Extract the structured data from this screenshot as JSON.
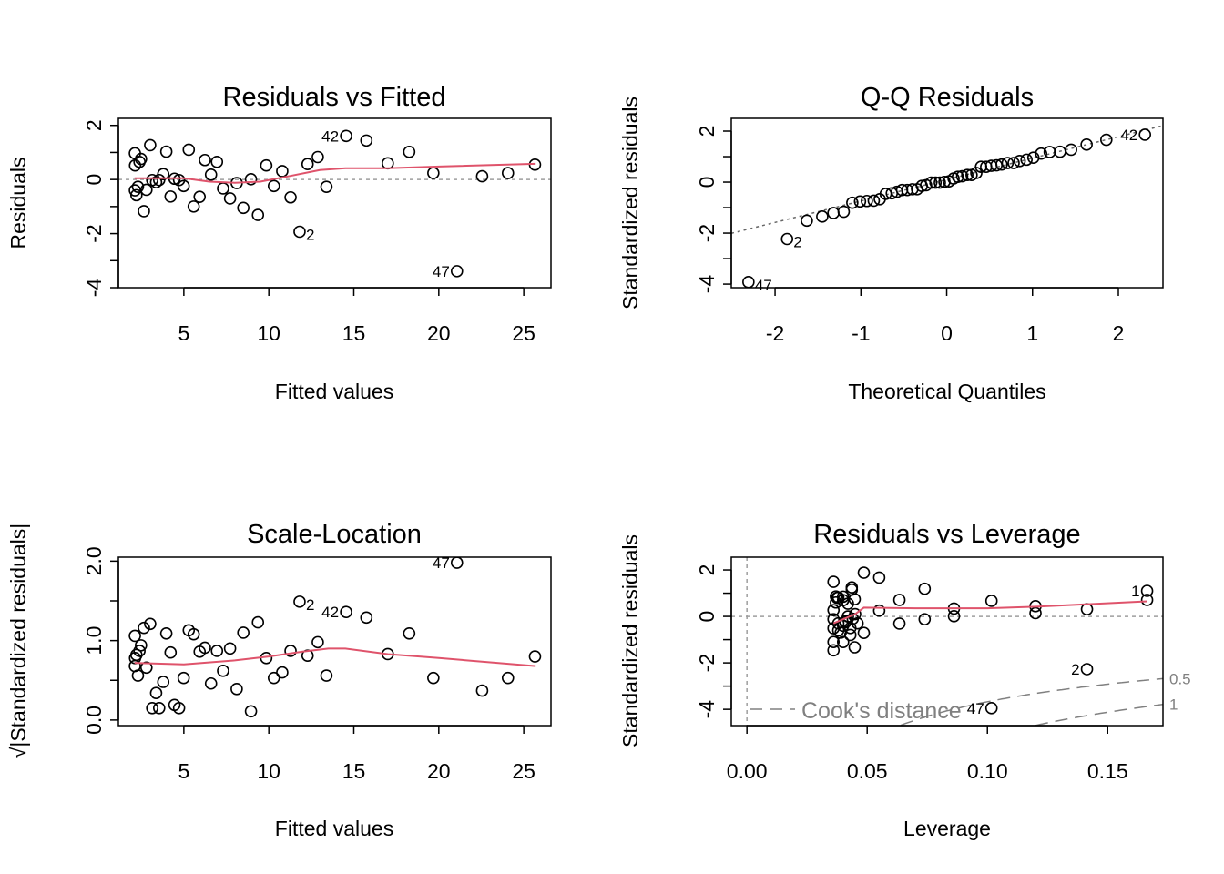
{
  "colors": {
    "points": "#000000",
    "smoother": "#DF536B",
    "reference": "#9E9E9E",
    "cooks": "#808080"
  },
  "chart_data": [
    {
      "type": "scatter",
      "title": "Residuals vs Fitted",
      "xlabel": "Fitted values",
      "ylabel": "Residuals",
      "xlim": [
        1.15,
        26.6
      ],
      "ylim": [
        -4.0,
        2.26
      ],
      "xticks": [
        5,
        10,
        15,
        20,
        25
      ],
      "xtick_labels": [
        "5",
        "10",
        "15",
        "20",
        "25"
      ],
      "yticks": [
        -4,
        -3,
        -2,
        -1,
        0,
        1,
        2
      ],
      "ytick_labels": [
        "-4",
        "",
        "-2",
        "",
        "0",
        "",
        "2"
      ],
      "x": [
        2.12,
        2.13,
        2.39,
        2.48,
        3.02,
        3.97,
        5.29,
        6.24,
        6.95,
        6.6,
        3.79,
        3.14,
        3.37,
        3.55,
        4.45,
        4.72,
        4.99,
        2.12,
        2.3,
        2.21,
        2.8,
        2.65,
        4.22,
        5.58,
        5.93,
        7.31,
        7.72,
        8.11,
        8.5,
        8.95,
        9.36,
        9.85,
        10.3,
        10.79,
        11.28,
        11.81,
        12.28,
        12.88,
        13.39,
        14.55,
        15.74,
        17.0,
        18.26,
        19.68,
        21.07,
        22.55,
        24.07,
        25.66
      ],
      "y": [
        0.97,
        0.52,
        0.65,
        0.76,
        1.27,
        1.03,
        1.1,
        0.72,
        0.65,
        0.18,
        0.2,
        -0.02,
        -0.1,
        -0.02,
        0.03,
        -0.02,
        -0.24,
        -0.4,
        -0.27,
        -0.58,
        -0.38,
        -1.17,
        -0.63,
        -1.0,
        -0.64,
        -0.33,
        -0.7,
        -0.13,
        -1.05,
        0.01,
        -1.31,
        0.52,
        -0.24,
        0.31,
        -0.66,
        -1.93,
        0.57,
        0.83,
        -0.27,
        1.61,
        1.44,
        0.6,
        1.02,
        0.24,
        -3.39,
        0.12,
        0.24,
        0.55
      ],
      "smooth": {
        "x": [
          2.1,
          5,
          6.5,
          8,
          9.5,
          11,
          13,
          14.5,
          17,
          20,
          25.7
        ],
        "y": [
          0.05,
          0.05,
          -0.08,
          -0.12,
          -0.08,
          0.1,
          0.35,
          0.42,
          0.42,
          0.48,
          0.58
        ]
      },
      "reference_line": {
        "type": "horizontal",
        "y": 0
      },
      "labeled_points": [
        {
          "label": "42",
          "x": 14.55,
          "y": 1.61,
          "pos": "left"
        },
        {
          "label": "2",
          "x": 11.81,
          "y": -1.93,
          "pos": "right"
        },
        {
          "label": "47",
          "x": 21.07,
          "y": -3.39,
          "pos": "left"
        }
      ]
    },
    {
      "type": "scatter",
      "title": "Q-Q Residuals",
      "xlabel": "Theoretical Quantiles",
      "ylabel": "Standardized residuals",
      "xlim": [
        -2.51,
        2.52
      ],
      "ylim": [
        -4.14,
        2.5
      ],
      "xticks": [
        -2,
        -1,
        0,
        1,
        2
      ],
      "xtick_labels": [
        "-2",
        "-1",
        "0",
        "1",
        "2"
      ],
      "yticks": [
        -4,
        -3,
        -2,
        -1,
        0,
        1,
        2
      ],
      "ytick_labels": [
        "-4",
        "",
        "-2",
        "",
        "0",
        "",
        "2"
      ],
      "x": [
        -2.31,
        -1.86,
        -1.63,
        -1.45,
        -1.32,
        -1.2,
        -1.1,
        -1.01,
        -0.93,
        -0.85,
        -0.78,
        -0.71,
        -0.64,
        -0.58,
        -0.52,
        -0.46,
        -0.4,
        -0.345,
        -0.29,
        -0.24,
        -0.18,
        -0.13,
        -0.08,
        -0.026,
        0.026,
        0.08,
        0.13,
        0.18,
        0.24,
        0.29,
        0.345,
        0.4,
        0.46,
        0.52,
        0.58,
        0.64,
        0.71,
        0.78,
        0.85,
        0.93,
        1.01,
        1.1,
        1.2,
        1.32,
        1.45,
        1.63,
        1.86,
        2.31
      ],
      "y": [
        -3.92,
        -2.23,
        -1.51,
        -1.35,
        -1.21,
        -1.16,
        -0.81,
        -0.76,
        -0.74,
        -0.73,
        -0.67,
        -0.46,
        -0.44,
        -0.38,
        -0.31,
        -0.31,
        -0.28,
        -0.28,
        -0.15,
        -0.12,
        -0.02,
        -0.02,
        -0.02,
        0.01,
        0.03,
        0.14,
        0.21,
        0.23,
        0.28,
        0.28,
        0.36,
        0.6,
        0.6,
        0.64,
        0.66,
        0.69,
        0.75,
        0.75,
        0.83,
        0.88,
        0.96,
        1.12,
        1.18,
        1.19,
        1.27,
        1.47,
        1.66,
        1.86
      ],
      "reference_line": {
        "type": "qq",
        "intercept": 0.1,
        "slope": 0.84
      },
      "labeled_points": [
        {
          "label": "42",
          "x": 2.31,
          "y": 1.86,
          "pos": "left"
        },
        {
          "label": "2",
          "x": -1.86,
          "y": -2.23,
          "pos": "right"
        },
        {
          "label": "47",
          "x": -2.31,
          "y": -3.92,
          "pos": "right"
        }
      ]
    },
    {
      "type": "scatter",
      "title": "Scale-Location",
      "xlabel": "Fitted values",
      "ylabel": "√|Standardized residuals|",
      "xlim": [
        1.15,
        26.6
      ],
      "ylim": [
        -0.07,
        2.05
      ],
      "xticks": [
        5,
        10,
        15,
        20,
        25
      ],
      "xtick_labels": [
        "5",
        "10",
        "15",
        "20",
        "25"
      ],
      "yticks": [
        0,
        0.5,
        1.0,
        1.5,
        2.0
      ],
      "ytick_labels": [
        "0.0",
        "",
        "1.0",
        "",
        "2.0"
      ],
      "x": [
        2.12,
        2.13,
        2.39,
        2.48,
        3.02,
        3.97,
        5.29,
        6.24,
        6.95,
        6.6,
        3.79,
        3.14,
        3.37,
        3.55,
        4.45,
        4.72,
        4.99,
        2.12,
        2.3,
        2.21,
        2.8,
        2.65,
        4.22,
        5.58,
        5.93,
        7.31,
        7.72,
        8.11,
        8.5,
        8.95,
        9.36,
        9.85,
        10.3,
        10.79,
        11.28,
        11.81,
        12.28,
        12.88,
        13.39,
        14.55,
        15.74,
        17.0,
        18.26,
        19.68,
        21.07,
        22.55,
        24.07,
        25.66
      ],
      "y": [
        1.06,
        0.78,
        0.87,
        0.94,
        1.21,
        1.09,
        1.13,
        0.91,
        0.87,
        0.46,
        0.48,
        0.15,
        0.34,
        0.15,
        0.19,
        0.15,
        0.53,
        0.68,
        0.56,
        0.82,
        0.66,
        1.16,
        0.85,
        1.08,
        0.86,
        0.62,
        0.9,
        0.39,
        1.1,
        0.11,
        1.23,
        0.78,
        0.53,
        0.6,
        0.87,
        1.49,
        0.81,
        0.98,
        0.56,
        1.36,
        1.29,
        0.83,
        1.09,
        0.53,
        1.98,
        0.37,
        0.53,
        0.8
      ],
      "smooth": {
        "x": [
          2.1,
          5,
          8,
          10,
          12,
          13.5,
          14.5,
          17,
          20,
          25.7
        ],
        "y": [
          0.72,
          0.7,
          0.75,
          0.8,
          0.86,
          0.9,
          0.9,
          0.83,
          0.78,
          0.68
        ]
      },
      "labeled_points": [
        {
          "label": "47",
          "x": 21.07,
          "y": 1.98,
          "pos": "left"
        },
        {
          "label": "2",
          "x": 11.81,
          "y": 1.49,
          "pos": "right"
        },
        {
          "label": "42",
          "x": 14.55,
          "y": 1.36,
          "pos": "left"
        }
      ]
    },
    {
      "type": "scatter",
      "title": "Residuals vs Leverage",
      "xlabel": "Leverage",
      "ylabel": "Standardized residuals",
      "xlim": [
        -0.0065,
        0.173
      ],
      "ylim": [
        -4.7,
        2.55
      ],
      "xticks": [
        0,
        0.05,
        0.1,
        0.15
      ],
      "xtick_labels": [
        "0.00",
        "0.05",
        "0.10",
        "0.15"
      ],
      "yticks": [
        -4,
        -3,
        -2,
        -1,
        0,
        1,
        2
      ],
      "ytick_labels": [
        "-4",
        "",
        "-2",
        "",
        "0",
        "",
        "2"
      ],
      "x": [
        0.036,
        0.036,
        0.036,
        0.036,
        0.036,
        0.036,
        0.037,
        0.038,
        0.04,
        0.0375,
        0.04,
        0.0436,
        0.0436,
        0.0448,
        0.0448,
        0.0486,
        0.0486,
        0.055,
        0.055,
        0.0634,
        0.0634,
        0.0739,
        0.0739,
        0.0861,
        0.0861,
        0.1017,
        0.1017,
        0.12,
        0.12,
        0.1414,
        0.1414,
        0.1664,
        0.1664,
        0.038,
        0.04,
        0.041,
        0.042,
        0.043,
        0.044,
        0.045,
        0.039,
        0.037,
        0.04,
        0.042,
        0.046,
        0.043,
        0.038,
        0.041
      ],
      "y": [
        1.49,
        0.27,
        -0.12,
        -0.51,
        -1.1,
        -1.46,
        0.86,
        0.82,
        0.7,
        0.8,
        -1.1,
        1.25,
        1.15,
        0.74,
        -1.33,
        1.88,
        -0.71,
        1.67,
        0.25,
        0.71,
        -0.31,
        1.19,
        -0.12,
        0.34,
        0.01,
        0.67,
        -3.95,
        0.44,
        0.14,
        0.31,
        -2.27,
        1.1,
        0.71,
        -0.3,
        -0.4,
        -0.2,
        0.0,
        -0.5,
        -0.1,
        0.1,
        -0.7,
        0.6,
        0.85,
        0.55,
        -0.3,
        -0.8,
        -0.6,
        -0.25
      ],
      "smooth": {
        "x": [
          0.036,
          0.045,
          0.0486,
          0.07,
          0.1,
          0.12,
          0.1664
        ],
        "y": [
          -0.3,
          0.1,
          0.38,
          0.35,
          0.35,
          0.42,
          0.65
        ]
      },
      "reference_line": {
        "type": "crosshair",
        "x": 0,
        "y": 0
      },
      "cooks_distance": {
        "legend": "Cook's distance",
        "levels": [
          0.5,
          1
        ],
        "level_labels": [
          "0.5",
          "1"
        ]
      },
      "labeled_points": [
        {
          "label": "1",
          "x": 0.1664,
          "y": 1.1,
          "pos": "left"
        },
        {
          "label": "2",
          "x": 0.1414,
          "y": -2.27,
          "pos": "left"
        },
        {
          "label": "47",
          "x": 0.1017,
          "y": -3.95,
          "pos": "left"
        }
      ]
    }
  ]
}
